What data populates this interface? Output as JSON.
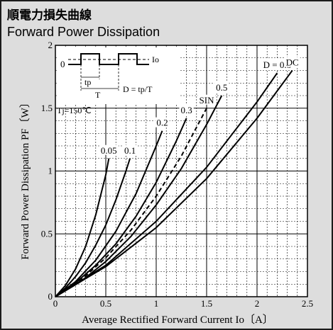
{
  "header": {
    "title_jp": "順電力損失曲線",
    "title_en": "Forward Power Dissipation"
  },
  "chart_data": {
    "type": "line",
    "xlabel": "Average Rectified Forward Current  Io〔A〕",
    "ylabel": "Forward Power Dissipation  PF〔W〕",
    "xlim": [
      0,
      2.5
    ],
    "ylim": [
      0,
      2
    ],
    "x_ticks": [
      "0",
      "0.5",
      "1",
      "1.5",
      "2",
      "2.5"
    ],
    "y_ticks": [
      "0",
      "0.5",
      "1",
      "1.5",
      "2"
    ],
    "grid": true,
    "condition_label": "Tj=150℃",
    "inset": {
      "zero_label": "0",
      "io_label": "Io",
      "tp_label": "tp",
      "t_label": "T",
      "formula": "D = tp/T"
    },
    "series": [
      {
        "name": "0.05",
        "dashed": false,
        "x": [
          0,
          0.1,
          0.2,
          0.3,
          0.4,
          0.5,
          0.53
        ],
        "y": [
          0,
          0.09,
          0.22,
          0.4,
          0.65,
          0.97,
          1.1
        ]
      },
      {
        "name": "0.1",
        "dashed": false,
        "x": [
          0,
          0.1,
          0.2,
          0.3,
          0.4,
          0.5,
          0.6,
          0.7,
          0.74
        ],
        "y": [
          0,
          0.07,
          0.16,
          0.27,
          0.41,
          0.57,
          0.77,
          1.0,
          1.1
        ]
      },
      {
        "name": "0.2",
        "dashed": false,
        "x": [
          0,
          0.2,
          0.4,
          0.6,
          0.8,
          1.0,
          1.06
        ],
        "y": [
          0,
          0.12,
          0.29,
          0.52,
          0.82,
          1.2,
          1.32
        ]
      },
      {
        "name": "0.3",
        "dashed": false,
        "x": [
          0,
          0.2,
          0.4,
          0.6,
          0.8,
          1.0,
          1.2,
          1.3
        ],
        "y": [
          0,
          0.11,
          0.25,
          0.42,
          0.64,
          0.91,
          1.24,
          1.42
        ]
      },
      {
        "name": "SIN",
        "dashed": true,
        "x": [
          0,
          0.25,
          0.5,
          0.75,
          1.0,
          1.25,
          1.5
        ],
        "y": [
          0,
          0.13,
          0.31,
          0.53,
          0.8,
          1.12,
          1.5
        ]
      },
      {
        "name": "0.5",
        "dashed": false,
        "x": [
          0,
          0.25,
          0.5,
          0.75,
          1.0,
          1.25,
          1.5,
          1.65
        ],
        "y": [
          0,
          0.12,
          0.28,
          0.48,
          0.73,
          1.02,
          1.37,
          1.6
        ]
      },
      {
        "name": "D = 0.8",
        "dashed": false,
        "x": [
          0,
          0.5,
          1.0,
          1.5,
          2.0,
          2.2
        ],
        "y": [
          0,
          0.25,
          0.6,
          1.03,
          1.55,
          1.78
        ]
      },
      {
        "name": "DC",
        "dashed": false,
        "x": [
          0,
          0.5,
          1.0,
          1.5,
          2.0,
          2.35
        ],
        "y": [
          0,
          0.24,
          0.55,
          0.94,
          1.42,
          1.8
        ]
      }
    ]
  }
}
